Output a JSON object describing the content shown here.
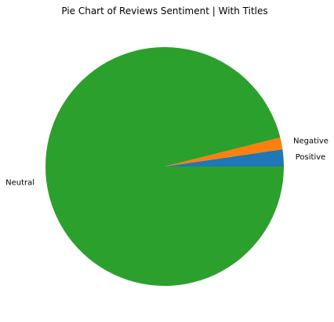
{
  "chart_data": {
    "type": "pie",
    "title": "Pie Chart of Reviews Sentiment | With Titles",
    "start_angle": 0,
    "direction": "counterclockwise",
    "slices": [
      {
        "label": "Positive",
        "value": 2.3,
        "color": "#1f77b4"
      },
      {
        "label": "Negative",
        "value": 1.6,
        "color": "#ff7f0e"
      },
      {
        "label": "Neutral",
        "value": 96.1,
        "color": "#2ca02c"
      }
    ]
  }
}
